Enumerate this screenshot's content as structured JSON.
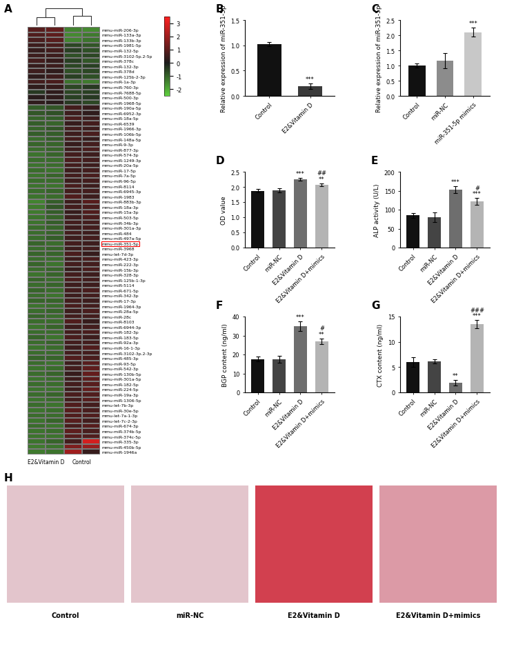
{
  "chart_data": [
    {
      "type": "heatmap",
      "panel": "A",
      "rows": [
        "mmu-miR-206-3p",
        "mmu-miR-133a-3p",
        "mmu-miR-133b-3p",
        "mmu-miR-1981-5p",
        "mmu-miR-132-5p",
        "mmu-miR-3102-5p.2-5p",
        "mmu-miR-378c",
        "mmu-miR-132-3p",
        "mmu-miR-378d",
        "mmu-miR-125b-2-3p",
        "mmu-miR-1a-3p",
        "mmu-miR-760-3p",
        "mmu-miR-7688-5p",
        "mmu-miR-500-3p",
        "mmu-miR-1968-5p",
        "mmu-miR-190a-5p",
        "mmu-miR-6952-3p",
        "mmu-miR-18a-5p",
        "mmu-miR-6539",
        "mmu-miR-1966-3p",
        "mmu-miR-106b-5p",
        "mmu-miR-148a-5p",
        "mmu-miR-9-3p",
        "mmu-miR-877-3p",
        "mmu-miR-574-3p",
        "mmu-miR-1249-3p",
        "mmu-miR-20a-5p",
        "mmu-miR-17-5p",
        "mmu-miR-7a-5p",
        "mmu-miR-96-5p",
        "mmu-miR-8114",
        "mmu-miR-6945-3p",
        "mmu-miR-1983",
        "mmu-miR-883b-3p",
        "mmu-miR-18a-3p",
        "mmu-miR-15a-3p",
        "mmu-miR-503-5p",
        "mmu-miR-34b-3p",
        "mmu-miR-301a-3p",
        "mmu-miR-484",
        "mmu-miR-497a-5p",
        "mmu-miR-351-5p",
        "mmu-miR-3968",
        "mmu-let-7d-3p",
        "mmu-miR-423-3p",
        "mmu-miR-222-3p",
        "mmu-miR-15b-3p",
        "mmu-miR-328-3p",
        "mmu-miR-125b-1-3p",
        "mmu-miR-5114",
        "mmu-miR-671-5p",
        "mmu-miR-342-3p",
        "mmu-miR-17-3p",
        "mmu-miR-1964-3p",
        "mmu-miR-28a-5p",
        "mmu-miR-28c",
        "mmu-miR-8103",
        "mmu-miR-6944-3p",
        "mmu-miR-182-3p",
        "mmu-miR-183-5p",
        "mmu-miR-92a-3p",
        "mmu-miR-16-1-3p",
        "mmu-miR-3102-3p.2-3p",
        "mmu-miR-485-3p",
        "mmu-miR-93-5p",
        "mmu-miR-542-3p",
        "mmu-miR-130b-5p",
        "mmu-miR-301a-5p",
        "mmu-miR-182-5p",
        "mmu-miR-224-5p",
        "mmu-miR-19a-3p",
        "mmu-miR-1306-5p",
        "mmu-let-7b-3p",
        "mmu-miR-30e-5p",
        "mmu-let-7a-1-3p",
        "mmu-let-7c-2-3p",
        "mmu-miR-674-3p",
        "mmu-miR-374b-5p",
        "mmu-miR-374c-5p",
        "mmu-miR-335-3p",
        "mmu-miR-450b-5p",
        "mmu-miR-1946a"
      ],
      "columns": [
        "E2&Vitamin D",
        "E2&Vitamin D",
        "Control",
        "Control"
      ],
      "values": [
        [
          0.9,
          1.1,
          -1.4,
          -1.5
        ],
        [
          0.8,
          1.0,
          -1.5,
          -1.3
        ],
        [
          0.7,
          0.9,
          -1.4,
          -1.2
        ],
        [
          0.5,
          0.7,
          -0.6,
          -0.8
        ],
        [
          0.4,
          0.6,
          -0.5,
          -0.7
        ],
        [
          0.5,
          0.5,
          -0.7,
          -0.6
        ],
        [
          0.6,
          0.4,
          -0.5,
          -0.8
        ],
        [
          0.4,
          0.5,
          -0.6,
          -0.5
        ],
        [
          0.5,
          0.3,
          -0.7,
          -0.6
        ],
        [
          0.3,
          0.5,
          -0.5,
          -0.7
        ],
        [
          0.6,
          0.7,
          -1.2,
          -1.3
        ],
        [
          0.3,
          0.4,
          -0.6,
          -0.4
        ],
        [
          -0.4,
          0.3,
          -0.6,
          -0.5
        ],
        [
          0.2,
          0.3,
          -0.5,
          -0.4
        ],
        [
          0.3,
          0.2,
          -0.4,
          -0.6
        ],
        [
          -0.9,
          -0.8,
          0.6,
          0.4
        ],
        [
          -0.8,
          -0.7,
          0.5,
          0.3
        ],
        [
          -1.0,
          -0.9,
          0.7,
          0.5
        ],
        [
          -0.9,
          -1.0,
          0.4,
          0.6
        ],
        [
          -1.0,
          -0.8,
          0.6,
          0.5
        ],
        [
          -0.9,
          -0.9,
          0.5,
          0.7
        ],
        [
          -1.1,
          -0.9,
          0.6,
          0.4
        ],
        [
          -1.0,
          -1.0,
          0.4,
          0.6
        ],
        [
          -1.1,
          -1.0,
          0.5,
          0.7
        ],
        [
          -1.2,
          -1.0,
          0.6,
          0.5
        ],
        [
          -1.1,
          -1.1,
          0.7,
          0.6
        ],
        [
          -1.2,
          -1.1,
          0.6,
          0.5
        ],
        [
          -1.1,
          -1.2,
          0.5,
          0.6
        ],
        [
          -1.2,
          -1.0,
          0.6,
          0.7
        ],
        [
          -1.1,
          -1.1,
          0.5,
          0.6
        ],
        [
          -1.2,
          -1.2,
          0.7,
          0.5
        ],
        [
          -1.1,
          -1.0,
          0.6,
          0.6
        ],
        [
          -1.2,
          -1.1,
          0.8,
          0.5
        ],
        [
          -1.4,
          -0.9,
          0.5,
          0.9
        ],
        [
          -1.3,
          -0.8,
          0.6,
          0.7
        ],
        [
          -1.3,
          -0.9,
          0.4,
          0.8
        ],
        [
          -1.2,
          -1.0,
          0.5,
          0.7
        ],
        [
          -1.2,
          -0.9,
          0.6,
          0.6
        ],
        [
          -1.1,
          -1.0,
          0.5,
          0.6
        ],
        [
          -1.1,
          -1.0,
          0.6,
          0.5
        ],
        [
          -1.1,
          -0.9,
          0.5,
          0.6
        ],
        [
          -1.0,
          -1.1,
          0.6,
          0.5
        ],
        [
          -1.1,
          -1.0,
          0.5,
          0.6
        ],
        [
          -1.0,
          -1.0,
          0.7,
          0.4
        ],
        [
          -1.1,
          -1.1,
          0.5,
          0.7
        ],
        [
          -1.0,
          -1.2,
          0.6,
          0.6
        ],
        [
          -1.1,
          -1.0,
          0.4,
          0.7
        ],
        [
          -1.2,
          -1.0,
          0.6,
          0.5
        ],
        [
          -1.0,
          -1.1,
          0.7,
          0.6
        ],
        [
          -1.1,
          -1.0,
          0.5,
          0.5
        ],
        [
          -1.0,
          -1.1,
          0.6,
          0.7
        ],
        [
          -1.1,
          -1.2,
          0.5,
          0.6
        ],
        [
          -1.0,
          -1.0,
          0.6,
          0.5
        ],
        [
          -1.2,
          -1.1,
          0.7,
          0.6
        ],
        [
          -1.1,
          -1.0,
          0.5,
          0.7
        ],
        [
          -1.0,
          -1.1,
          0.6,
          0.6
        ],
        [
          -1.1,
          -1.1,
          0.8,
          0.4
        ],
        [
          -1.2,
          -1.0,
          0.5,
          0.6
        ],
        [
          -1.1,
          -1.1,
          0.6,
          0.7
        ],
        [
          -1.0,
          -1.2,
          0.7,
          0.5
        ],
        [
          -1.1,
          -1.0,
          0.6,
          0.6
        ],
        [
          -1.2,
          -1.1,
          0.5,
          0.8
        ],
        [
          -1.1,
          -1.1,
          0.6,
          0.6
        ],
        [
          -1.0,
          -1.0,
          0.8,
          0.7
        ],
        [
          -1.1,
          -1.2,
          0.5,
          0.9
        ],
        [
          -1.2,
          -1.1,
          0.6,
          1.0
        ],
        [
          -1.1,
          -1.0,
          0.4,
          1.1
        ],
        [
          -1.2,
          -1.1,
          0.5,
          1.0
        ],
        [
          -1.1,
          -1.1,
          0.6,
          0.9
        ],
        [
          -1.2,
          -1.2,
          0.5,
          1.1
        ],
        [
          -1.1,
          -1.0,
          0.7,
          0.8
        ],
        [
          -1.2,
          -1.1,
          0.6,
          0.9
        ],
        [
          -1.1,
          -1.2,
          0.8,
          0.6
        ],
        [
          -1.2,
          -1.1,
          0.9,
          0.7
        ],
        [
          -1.1,
          -1.1,
          0.8,
          0.8
        ],
        [
          -1.2,
          -1.0,
          0.9,
          0.6
        ],
        [
          -1.1,
          -1.2,
          0.7,
          0.9
        ],
        [
          -1.2,
          -1.1,
          1.0,
          0.7
        ],
        [
          -1.2,
          -1.2,
          0.9,
          0.8
        ],
        [
          -1.2,
          -1.0,
          0.6,
          2.8
        ],
        [
          -1.3,
          -1.2,
          1.5,
          1.9
        ],
        [
          -1.3,
          -1.2,
          2.0,
          0.4
        ]
      ],
      "highlight": "mmu-miR-351-5p",
      "colorbar": {
        "range": [
          -2.5,
          3.5
        ],
        "ticks": [
          -2,
          -1,
          0,
          1,
          2,
          3
        ]
      }
    },
    {
      "type": "bar",
      "panel": "B",
      "y_label": "Relative expression of miR-351-5p",
      "categories": [
        "Control",
        "E2&Vitamin D"
      ],
      "values": [
        1.02,
        0.19
      ],
      "errors": [
        0.04,
        0.05
      ],
      "colors": [
        "#111111",
        "#3a3a3a"
      ],
      "significance": [
        null,
        [
          "***"
        ]
      ],
      "ylim": [
        0,
        1.5
      ],
      "yticks": [
        {
          "value": 0,
          "label": "0.0"
        },
        {
          "value": 0.5,
          "label": "0.5"
        },
        {
          "value": 1.0,
          "label": "1.0"
        },
        {
          "value": 1.5,
          "label": "1.5"
        }
      ]
    },
    {
      "type": "bar",
      "panel": "C",
      "y_label": "Relative expression of miR-351-5p",
      "categories": [
        "Control",
        "miR-NC",
        "miR-351-5p mimics"
      ],
      "values": [
        1.0,
        1.15,
        2.1
      ],
      "errors": [
        0.07,
        0.25,
        0.15
      ],
      "colors": [
        "#111111",
        "#8c8c8c",
        "#c8c8c8"
      ],
      "significance": [
        null,
        null,
        [
          "***"
        ]
      ],
      "ylim": [
        0,
        2.5
      ],
      "yticks": [
        {
          "value": 0,
          "label": "0.0"
        },
        {
          "value": 0.5,
          "label": "0.5"
        },
        {
          "value": 1.0,
          "label": "1.0"
        },
        {
          "value": 1.5,
          "label": "1.5"
        },
        {
          "value": 2.0,
          "label": "2.0"
        },
        {
          "value": 2.5,
          "label": "2.5"
        }
      ]
    },
    {
      "type": "bar",
      "panel": "D",
      "y_label": "OD value",
      "categories": [
        "Control",
        "miR-NC",
        "E2&Vitamin D",
        "E2&Vitamin D+mimics"
      ],
      "values": [
        1.87,
        1.88,
        2.25,
        2.07
      ],
      "errors": [
        0.06,
        0.07,
        0.05,
        0.05
      ],
      "colors": [
        "#111111",
        "#444444",
        "#6e6e6e",
        "#b4b4b4"
      ],
      "significance": [
        null,
        null,
        [
          "***"
        ],
        [
          "##",
          "**"
        ]
      ],
      "ylim": [
        0,
        2.5
      ],
      "yticks": [
        {
          "value": 0,
          "label": "0.0"
        },
        {
          "value": 0.5,
          "label": "0.5"
        },
        {
          "value": 1.0,
          "label": "1.0"
        },
        {
          "value": 1.5,
          "label": "1.5"
        },
        {
          "value": 2.0,
          "label": "2.0"
        },
        {
          "value": 2.5,
          "label": "2.5"
        }
      ]
    },
    {
      "type": "bar",
      "panel": "E",
      "y_label": "ALP activity (U/L)",
      "categories": [
        "Control",
        "miR-NC",
        "E2&Vitamin D",
        "E2&Vitamin D+mimics"
      ],
      "values": [
        85,
        80,
        152,
        122
      ],
      "errors": [
        6,
        12,
        9,
        9
      ],
      "colors": [
        "#111111",
        "#444444",
        "#6e6e6e",
        "#b4b4b4"
      ],
      "significance": [
        null,
        null,
        [
          "***"
        ],
        [
          "#",
          "***"
        ]
      ],
      "ylim": [
        0,
        200
      ],
      "yticks": [
        0,
        50,
        100,
        150,
        200
      ]
    },
    {
      "type": "bar",
      "panel": "F",
      "y_label": "BGP content (ng/ml)",
      "categories": [
        "Control",
        "miR-NC",
        "E2&Vitamin D",
        "E2&Vitamin D+mimics"
      ],
      "values": [
        17.5,
        17.5,
        35,
        27
      ],
      "errors": [
        1.3,
        1.8,
        2.5,
        1.5
      ],
      "colors": [
        "#111111",
        "#444444",
        "#6e6e6e",
        "#b4b4b4"
      ],
      "significance": [
        null,
        null,
        [
          "***"
        ],
        [
          "#",
          "**"
        ]
      ],
      "ylim": [
        0,
        40
      ],
      "yticks": [
        0,
        10,
        20,
        30,
        40
      ]
    },
    {
      "type": "bar",
      "panel": "G",
      "y_label": "CTX content (ng/ml)",
      "categories": [
        "Control",
        "miR-NC",
        "E2&Vitamin D",
        "E2&Vitamin D+mimics"
      ],
      "values": [
        6,
        6.1,
        1.9,
        13.5
      ],
      "errors": [
        0.9,
        0.4,
        0.6,
        0.8
      ],
      "colors": [
        "#111111",
        "#444444",
        "#6e6e6e",
        "#b4b4b4"
      ],
      "significance": [
        null,
        null,
        [
          "**"
        ],
        [
          "###",
          "***"
        ]
      ],
      "ylim": [
        0,
        15
      ],
      "yticks": [
        0,
        5,
        10,
        15
      ]
    },
    {
      "type": "image_panel",
      "panel": "H",
      "images": [
        {
          "label": "Control",
          "color": "#e3c5cc"
        },
        {
          "label": "miR-NC",
          "color": "#e3c5cc"
        },
        {
          "label": "E2&Vitamin D",
          "color": "#d2404f"
        },
        {
          "label": "E2&Vitamin D+mimics",
          "color": "#dc9aa6"
        }
      ]
    }
  ]
}
